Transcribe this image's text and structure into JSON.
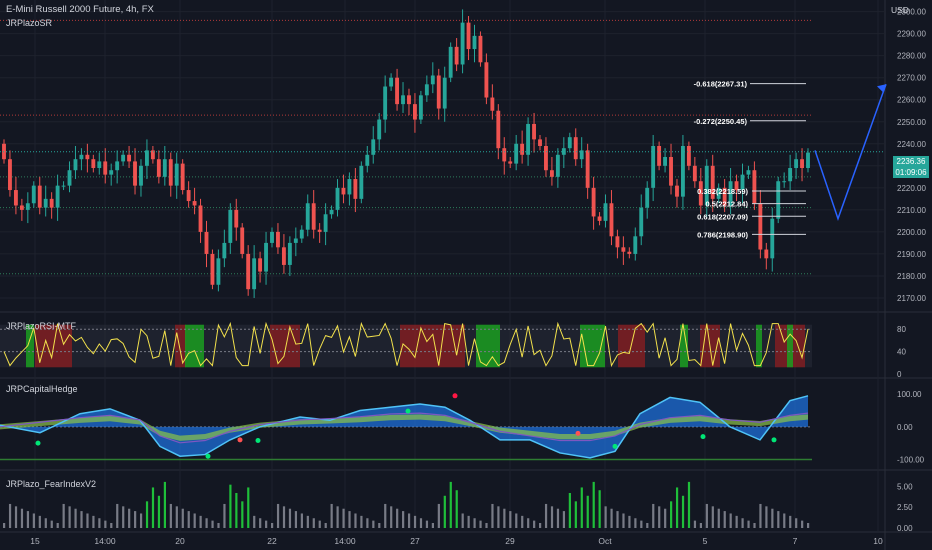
{
  "header": {
    "title": "E-Mini Russell 2000 Future, 4h, FX",
    "subtitle": "JRPlazoSR",
    "currency": "USD"
  },
  "price_box": {
    "price": "2236.36",
    "countdown": "01:09:06"
  },
  "colors": {
    "bg": "#131722",
    "up": "#26a69a",
    "down": "#ef5350",
    "grid": "#1e222d",
    "axis": "#2a2e39"
  },
  "panes": {
    "rsi": "JRPlazoRSI-MTF",
    "hedge": "JRPCapitalHedge",
    "fear": "JRPlazo_FearIndexV2"
  },
  "chart_data": [
    {
      "type": "candlestick",
      "title": "E-Mini Russell 2000 Future, 4h, FX",
      "y_ticks": [
        2170,
        2180,
        2190,
        2200,
        2210,
        2220,
        2230,
        2240,
        2250,
        2260,
        2270,
        2280,
        2290,
        2300
      ],
      "ylim": [
        2165,
        2303
      ],
      "x_tick_labels": [
        "15",
        "14:00",
        "20",
        "22",
        "14:00",
        "27",
        "29",
        "Oct",
        "5",
        "7",
        "10"
      ],
      "fib_levels": [
        {
          "label": "-0.618(2267.31)",
          "value": 2267.31
        },
        {
          "label": "-0.272(2250.45)",
          "value": 2250.45
        },
        {
          "label": "0.382(2218.59)",
          "value": 2218.59
        },
        {
          "label": "0.5(2212.84)",
          "value": 2212.84
        },
        {
          "label": "0.618(2207.09)",
          "value": 2207.09
        },
        {
          "label": "0.786(2198.90)",
          "value": 2198.9
        }
      ],
      "sr_levels": [
        2296,
        2253,
        2225,
        2211,
        2181
      ],
      "projection": [
        {
          "x": "7",
          "y": 2237
        },
        {
          "x": "9",
          "y": 2206
        },
        {
          "x": "10",
          "y": 2267
        }
      ],
      "close": [
        2233,
        2219,
        2212,
        2210,
        2213,
        2221,
        2211,
        2215,
        2211,
        2221,
        2221,
        2228,
        2233,
        2235,
        2233,
        2229,
        2232,
        2226,
        2228,
        2232,
        2235,
        2232,
        2221,
        2230,
        2237,
        2233,
        2225,
        2233,
        2221,
        2231,
        2219,
        2214,
        2212,
        2200,
        2190,
        2176,
        2188,
        2195,
        2210,
        2202,
        2190,
        2174,
        2188,
        2182,
        2195,
        2200,
        2193,
        2185,
        2195,
        2197,
        2201,
        2213,
        2201,
        2200,
        2208,
        2210,
        2220,
        2217,
        2224,
        2215,
        2230,
        2235,
        2242,
        2251,
        2266,
        2270,
        2258,
        2262,
        2258,
        2251,
        2262,
        2267,
        2271,
        2256,
        2270,
        2284,
        2276,
        2295,
        2283,
        2289,
        2277,
        2261,
        2255,
        2238,
        2232,
        2231,
        2240,
        2235,
        2249,
        2242,
        2239,
        2228,
        2225,
        2235,
        2238,
        2243,
        2233,
        2237,
        2220,
        2207,
        2205,
        2213,
        2198,
        2193,
        2191,
        2190,
        2198,
        2211,
        2220,
        2239,
        2230,
        2234,
        2221,
        2216,
        2239,
        2230,
        2223,
        2212,
        2230,
        2215,
        2220,
        2212,
        2223,
        2219,
        2226,
        2228,
        2213,
        2192,
        2188,
        2206,
        2223,
        2223,
        2229,
        2233,
        2229,
        2236
      ]
    },
    {
      "type": "line",
      "title": "JRPlazoRSI-MTF",
      "y_ticks": [
        0,
        40,
        80
      ],
      "ylim": [
        0,
        100
      ],
      "levels": [
        80,
        40
      ],
      "bands": {
        "green": [
          [
            26,
            34
          ],
          [
            185,
            204
          ],
          [
            476,
            500
          ],
          [
            580,
            605
          ],
          [
            680,
            688
          ],
          [
            756,
            762
          ],
          [
            787,
            793
          ]
        ],
        "red": [
          [
            35,
            72
          ],
          [
            175,
            186
          ],
          [
            270,
            300
          ],
          [
            400,
            465
          ],
          [
            618,
            645
          ],
          [
            700,
            720
          ],
          [
            775,
            805
          ]
        ]
      }
    },
    {
      "type": "area",
      "title": "JRPCapitalHedge",
      "y_ticks": [
        100,
        0,
        -100
      ],
      "ylim": [
        -120,
        125
      ],
      "x": [
        0,
        40,
        80,
        110,
        140,
        160,
        180,
        205,
        230,
        260,
        300,
        330,
        360,
        390,
        420,
        445,
        470,
        500,
        530,
        560,
        590,
        615,
        640,
        670,
        700,
        730,
        760,
        790,
        808
      ],
      "series": [
        {
          "name": "fast",
          "values": [
            5,
            -18,
            40,
            55,
            20,
            -60,
            -90,
            -85,
            -40,
            0,
            30,
            20,
            50,
            60,
            70,
            60,
            20,
            -40,
            -40,
            -80,
            -95,
            -75,
            40,
            90,
            75,
            0,
            -40,
            80,
            95
          ]
        },
        {
          "name": "slow",
          "values": [
            0,
            10,
            20,
            25,
            15,
            -20,
            -35,
            -30,
            -10,
            5,
            15,
            18,
            22,
            28,
            30,
            25,
            10,
            -10,
            -20,
            -30,
            -30,
            -20,
            5,
            20,
            25,
            15,
            10,
            25,
            30
          ]
        }
      ]
    },
    {
      "type": "bar",
      "title": "JRPlazo_FearIndexV2",
      "y_ticks": [
        5.0,
        2.5,
        0.0
      ],
      "ylim": [
        0,
        6
      ]
    }
  ]
}
